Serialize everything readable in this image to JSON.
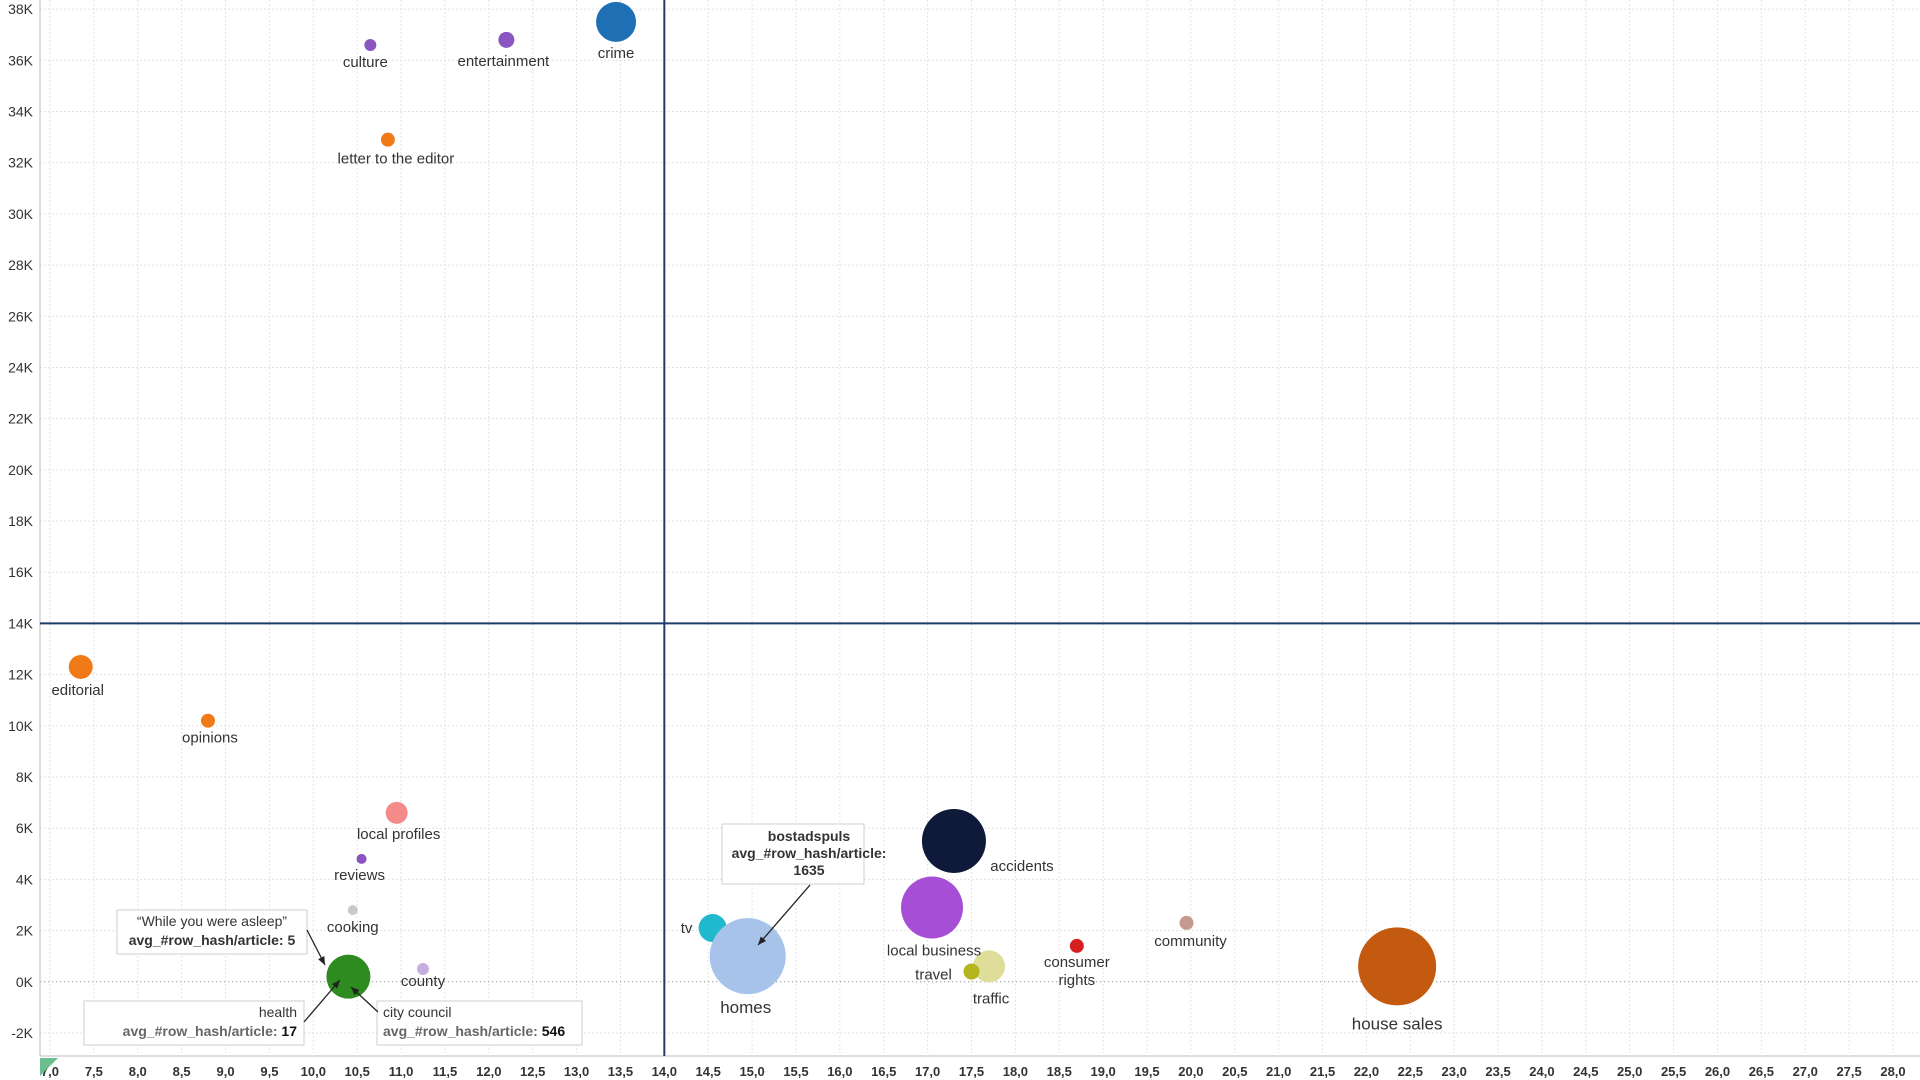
{
  "chart_data": {
    "type": "scatter",
    "title": "",
    "xlabel": "",
    "ylabel": "",
    "xlim": [
      7.0,
      28.3
    ],
    "ylim": [
      -2900,
      38200
    ],
    "x_ticks": [
      "7,0",
      "7,5",
      "8,0",
      "8,5",
      "9,0",
      "9,5",
      "10,0",
      "10,5",
      "11,0",
      "11,5",
      "12,0",
      "12,5",
      "13,0",
      "13,5",
      "14,0",
      "14,5",
      "15,0",
      "15,5",
      "16,0",
      "16,5",
      "17,0",
      "17,5",
      "18,0",
      "18,5",
      "19,0",
      "19,5",
      "20,0",
      "20,5",
      "21,0",
      "21,5",
      "22,0",
      "22,5",
      "23,0",
      "23,5",
      "24,0",
      "24,5",
      "25,0",
      "25,5",
      "26,0",
      "26,5",
      "27,0",
      "27,5",
      "28,0"
    ],
    "y_ticks": [
      "-2K",
      "0K",
      "2K",
      "4K",
      "6K",
      "8K",
      "10K",
      "12K",
      "14K",
      "16K",
      "18K",
      "20K",
      "22K",
      "24K",
      "26K",
      "28K",
      "30K",
      "32K",
      "34K",
      "36K",
      "38K"
    ],
    "grid": true,
    "reference_lines": {
      "x": 14.0,
      "y": 14000,
      "color": "#1f3d6b"
    },
    "points": [
      {
        "label": "culture",
        "x": 10.65,
        "y": 36600,
        "size": 6,
        "color": "#8a55c0"
      },
      {
        "label": "entertainment",
        "x": 12.2,
        "y": 36800,
        "size": 8,
        "color": "#8a55c0"
      },
      {
        "label": "crime",
        "x": 13.45,
        "y": 37500,
        "size": 20,
        "color": "#1f6fb5"
      },
      {
        "label": "letter to the editor",
        "x": 10.85,
        "y": 32900,
        "size": 7,
        "color": "#f07a18"
      },
      {
        "label": "editorial",
        "x": 7.35,
        "y": 12300,
        "size": 12,
        "color": "#f07a18"
      },
      {
        "label": "opinions",
        "x": 8.8,
        "y": 10200,
        "size": 7,
        "color": "#f07a18"
      },
      {
        "label": "local profiles",
        "x": 10.95,
        "y": 6600,
        "size": 11,
        "color": "#f58a8a"
      },
      {
        "label": "reviews",
        "x": 10.55,
        "y": 4800,
        "size": 5,
        "color": "#8a55c0"
      },
      {
        "label": "cooking",
        "x": 10.45,
        "y": 2800,
        "size": 5,
        "color": "#c9c9c9"
      },
      {
        "label": "health",
        "x": 10.4,
        "y": 200,
        "size": 22,
        "color": "#2e8b1f"
      },
      {
        "label": "county",
        "x": 11.25,
        "y": 500,
        "size": 6,
        "color": "#c7aee0"
      },
      {
        "label": "tv",
        "x": 14.55,
        "y": 2100,
        "size": 14,
        "color": "#1fb8cc"
      },
      {
        "label": "homes",
        "x": 14.95,
        "y": 1000,
        "size": 38,
        "color": "#a7c3ea"
      },
      {
        "label": "accidents",
        "x": 17.3,
        "y": 5500,
        "size": 32,
        "color": "#0f1a3a"
      },
      {
        "label": "local business",
        "x": 17.05,
        "y": 2900,
        "size": 31,
        "color": "#a64fd6"
      },
      {
        "label": "traffic",
        "x": 17.7,
        "y": 600,
        "size": 16,
        "color": "#dede9a"
      },
      {
        "label": "travel",
        "x": 17.5,
        "y": 400,
        "size": 8,
        "color": "#b5b51f"
      },
      {
        "label": "consumer rights",
        "x": 18.7,
        "y": 1400,
        "size": 7,
        "color": "#d62020"
      },
      {
        "label": "community",
        "x": 19.95,
        "y": 2300,
        "size": 7,
        "color": "#c49a8f"
      },
      {
        "label": "house sales",
        "x": 22.35,
        "y": 600,
        "size": 39,
        "color": "#c45a0f"
      }
    ],
    "annotations": [
      {
        "title": "bostadspuls",
        "metric": "avg_#row_hash/article:",
        "value": "1635",
        "color": "#2e7d4f"
      },
      {
        "title": "“While you were asleep”",
        "metric": "avg_#row_hash/article:",
        "value": "5",
        "color": "#c01c1c"
      },
      {
        "title": "health",
        "metric": "avg_#row_hash/article:",
        "value": "17"
      },
      {
        "title": "city council",
        "metric": "avg_#row_hash/article:",
        "value": "546"
      }
    ]
  }
}
